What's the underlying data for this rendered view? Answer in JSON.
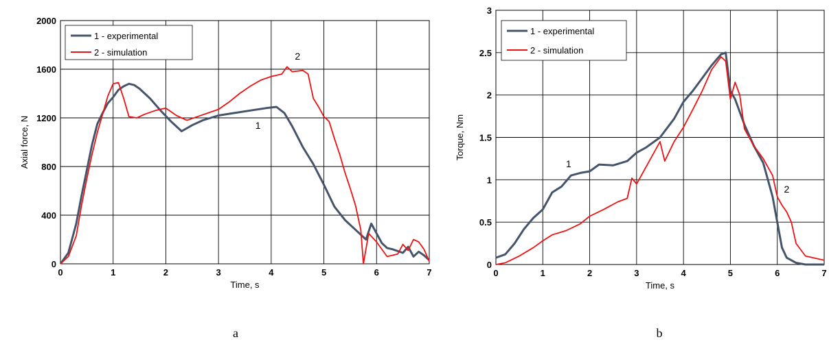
{
  "chart_data": [
    {
      "type": "line",
      "caption": "a",
      "xlabel": "Time, s",
      "ylabel": "Axial force, N",
      "xlim": [
        0,
        7
      ],
      "ylim": [
        0,
        2000
      ],
      "xticks": [
        0,
        1,
        2,
        3,
        4,
        5,
        6,
        7
      ],
      "yticks": [
        0,
        400,
        800,
        1200,
        1600,
        2000
      ],
      "grid": true,
      "legend": "top-left",
      "annotations": [
        {
          "text": "1",
          "x": 3.75,
          "y": 1110
        },
        {
          "text": "2",
          "x": 4.5,
          "y": 1680
        }
      ],
      "series": [
        {
          "name": "1 - experimental",
          "color": "#44546a",
          "x": [
            0,
            0.15,
            0.3,
            0.4,
            0.5,
            0.6,
            0.7,
            0.8,
            0.9,
            1.0,
            1.1,
            1.2,
            1.3,
            1.4,
            1.5,
            1.7,
            1.9,
            2.1,
            2.3,
            2.5,
            2.7,
            3.0,
            3.3,
            3.6,
            3.9,
            4.1,
            4.25,
            4.4,
            4.6,
            4.8,
            5.0,
            5.2,
            5.4,
            5.6,
            5.8,
            5.9,
            6.0,
            6.1,
            6.2,
            6.3,
            6.5,
            6.6,
            6.7,
            6.8,
            6.9,
            7.0
          ],
          "values": [
            0,
            90,
            330,
            560,
            770,
            980,
            1150,
            1240,
            1320,
            1370,
            1430,
            1460,
            1480,
            1470,
            1440,
            1360,
            1260,
            1170,
            1090,
            1140,
            1180,
            1220,
            1240,
            1260,
            1280,
            1290,
            1240,
            1130,
            960,
            820,
            650,
            470,
            360,
            280,
            200,
            330,
            250,
            170,
            130,
            120,
            90,
            140,
            60,
            100,
            70,
            30
          ]
        },
        {
          "name": "2 - simulation",
          "color": "#ee1111",
          "x": [
            0,
            0.15,
            0.3,
            0.4,
            0.5,
            0.6,
            0.7,
            0.8,
            0.9,
            1.0,
            1.1,
            1.2,
            1.3,
            1.45,
            1.6,
            1.8,
            2.0,
            2.2,
            2.4,
            2.6,
            2.8,
            3.0,
            3.2,
            3.4,
            3.6,
            3.8,
            4.0,
            4.2,
            4.3,
            4.4,
            4.6,
            4.7,
            4.8,
            4.9,
            5.0,
            5.1,
            5.2,
            5.3,
            5.4,
            5.5,
            5.6,
            5.7,
            5.75,
            5.85,
            6.0,
            6.2,
            6.4,
            6.5,
            6.6,
            6.7,
            6.8,
            6.9,
            7.0
          ],
          "values": [
            0,
            60,
            230,
            480,
            700,
            900,
            1080,
            1230,
            1380,
            1480,
            1490,
            1360,
            1210,
            1200,
            1230,
            1260,
            1280,
            1220,
            1180,
            1210,
            1240,
            1270,
            1330,
            1400,
            1460,
            1510,
            1540,
            1560,
            1620,
            1580,
            1590,
            1560,
            1360,
            1290,
            1210,
            1170,
            1030,
            900,
            750,
            620,
            480,
            280,
            0,
            250,
            180,
            60,
            80,
            160,
            110,
            200,
            180,
            120,
            20
          ]
        }
      ]
    },
    {
      "type": "line",
      "caption": "b",
      "xlabel": "Time, s",
      "ylabel": "Torque, Nm",
      "xlim": [
        0,
        7
      ],
      "ylim": [
        0,
        3
      ],
      "xticks": [
        0,
        1,
        2,
        3,
        4,
        5,
        6,
        7
      ],
      "yticks": [
        0,
        0.5,
        1,
        1.5,
        2,
        2.5,
        3
      ],
      "grid": true,
      "legend": "top-left",
      "annotations": [
        {
          "text": "1",
          "x": 1.55,
          "y": 1.15
        },
        {
          "text": "2",
          "x": 6.2,
          "y": 0.85
        }
      ],
      "series": [
        {
          "name": "1 - experimental",
          "color": "#44546a",
          "x": [
            0,
            0.2,
            0.4,
            0.6,
            0.8,
            1.0,
            1.2,
            1.4,
            1.6,
            1.8,
            2.0,
            2.2,
            2.5,
            2.8,
            3.0,
            3.2,
            3.5,
            3.8,
            4.0,
            4.2,
            4.4,
            4.6,
            4.8,
            4.9,
            5.0,
            5.1,
            5.3,
            5.5,
            5.7,
            5.9,
            6.0,
            6.1,
            6.2,
            6.4,
            6.6,
            7.0
          ],
          "values": [
            0.08,
            0.12,
            0.25,
            0.42,
            0.55,
            0.65,
            0.85,
            0.92,
            1.05,
            1.08,
            1.1,
            1.18,
            1.17,
            1.22,
            1.32,
            1.38,
            1.5,
            1.72,
            1.92,
            2.05,
            2.2,
            2.35,
            2.48,
            2.5,
            2.05,
            1.95,
            1.65,
            1.4,
            1.2,
            0.8,
            0.5,
            0.2,
            0.08,
            0.02,
            0.0,
            0.0
          ]
        },
        {
          "name": "2 - simulation",
          "color": "#ee1111",
          "x": [
            0,
            0.2,
            0.5,
            0.8,
            1.0,
            1.2,
            1.5,
            1.8,
            2.0,
            2.3,
            2.6,
            2.8,
            2.9,
            3.0,
            3.2,
            3.4,
            3.5,
            3.6,
            3.8,
            4.0,
            4.2,
            4.4,
            4.6,
            4.8,
            4.9,
            5.0,
            5.1,
            5.2,
            5.3,
            5.5,
            5.7,
            5.9,
            6.0,
            6.1,
            6.2,
            6.3,
            6.4,
            6.6,
            7.0
          ],
          "values": [
            0.0,
            0.02,
            0.1,
            0.2,
            0.28,
            0.35,
            0.4,
            0.48,
            0.57,
            0.65,
            0.74,
            0.78,
            1.02,
            0.95,
            1.15,
            1.35,
            1.45,
            1.22,
            1.45,
            1.62,
            1.83,
            2.05,
            2.3,
            2.45,
            2.4,
            1.95,
            2.15,
            2.0,
            1.6,
            1.4,
            1.25,
            1.05,
            0.8,
            0.7,
            0.62,
            0.5,
            0.25,
            0.1,
            0.05
          ]
        }
      ]
    }
  ]
}
